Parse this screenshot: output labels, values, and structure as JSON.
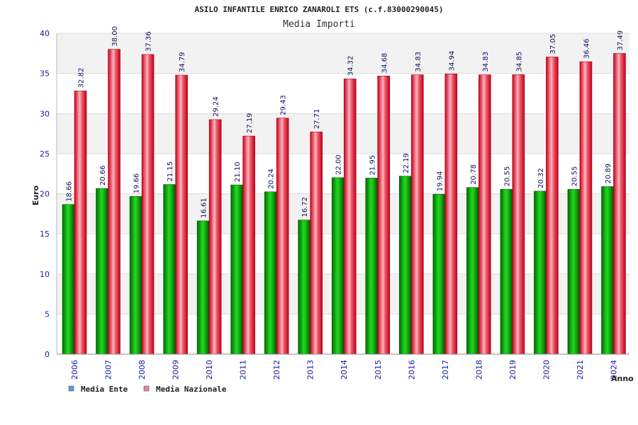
{
  "chart_data": {
    "type": "bar",
    "title": "ASILO INFANTILE ENRICO ZANAROLI ETS (c.f.83000290045)",
    "subtitle": "Media Importi",
    "xlabel": "Anno",
    "ylabel": "Euro",
    "ylim": [
      0,
      40
    ],
    "yticks": [
      "0",
      "5",
      "10",
      "15",
      "20",
      "25",
      "30",
      "35",
      "40"
    ],
    "categories": [
      "2006",
      "2007",
      "2008",
      "2009",
      "2010",
      "2011",
      "2012",
      "2013",
      "2014",
      "2015",
      "2016",
      "2017",
      "2018",
      "2019",
      "2020",
      "2021",
      "2024"
    ],
    "series": [
      {
        "name": "Media Ente",
        "color": "#00b000",
        "values": [
          18.66,
          20.66,
          19.66,
          21.15,
          16.61,
          21.1,
          20.24,
          16.72,
          22.0,
          21.95,
          22.19,
          19.94,
          20.78,
          20.55,
          20.32,
          20.55,
          20.89
        ],
        "labels": [
          "18.66",
          "20.66",
          "19.66",
          "21.15",
          "16.61",
          "21.10",
          "20.24",
          "16.72",
          "22.00",
          "21.95",
          "22.19",
          "19.94",
          "20.78",
          "20.55",
          "20.32",
          "20.55",
          "20.89"
        ]
      },
      {
        "name": "Media Nazionale",
        "color": "#e8102a",
        "values": [
          32.82,
          38.0,
          37.36,
          34.79,
          29.24,
          27.19,
          29.43,
          27.71,
          34.32,
          34.68,
          34.83,
          34.94,
          34.83,
          34.85,
          37.05,
          36.46,
          37.49
        ],
        "labels": [
          "32.82",
          "38.00",
          "37.36",
          "34.79",
          "29.24",
          "27.19",
          "29.43",
          "27.71",
          "34.32",
          "34.68",
          "34.83",
          "34.94",
          "34.83",
          "34.85",
          "37.05",
          "36.46",
          "37.49"
        ]
      }
    ],
    "legend": [
      {
        "name": "Media Ente",
        "color": "#5a9ae0"
      },
      {
        "name": "Media Nazionale",
        "color": "#e080b0"
      }
    ],
    "grid": true,
    "legend_position": "bottom-left"
  }
}
